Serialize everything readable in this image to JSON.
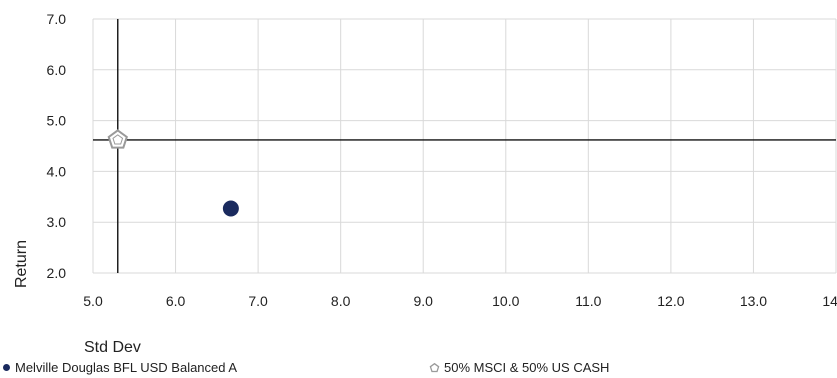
{
  "chart_data": {
    "type": "scatter",
    "xlabel": "Std Dev",
    "ylabel": "Return",
    "xlim": [
      5.0,
      14.0
    ],
    "ylim": [
      2.0,
      7.0
    ],
    "x_ticks": [
      "5.0",
      "6.0",
      "7.0",
      "8.0",
      "9.0",
      "10.0",
      "11.0",
      "12.0",
      "13.0",
      "14.0"
    ],
    "y_ticks": [
      "2.0",
      "3.0",
      "4.0",
      "5.0",
      "6.0",
      "7.0"
    ],
    "grid": true,
    "legend_position": "bottom",
    "reference_lines": {
      "x": 5.3,
      "y": 4.62
    },
    "series": [
      {
        "name": "Melville Douglas BFL USD Balanced A",
        "marker": "circle",
        "color": "#1a2a5e",
        "points": [
          {
            "x": 6.67,
            "y": 3.27
          }
        ]
      },
      {
        "name": "50% MSCI & 50% US CASH",
        "marker": "pentagon-outline",
        "color": "#9a9a9a",
        "points": [
          {
            "x": 5.3,
            "y": 4.62
          }
        ]
      }
    ]
  }
}
